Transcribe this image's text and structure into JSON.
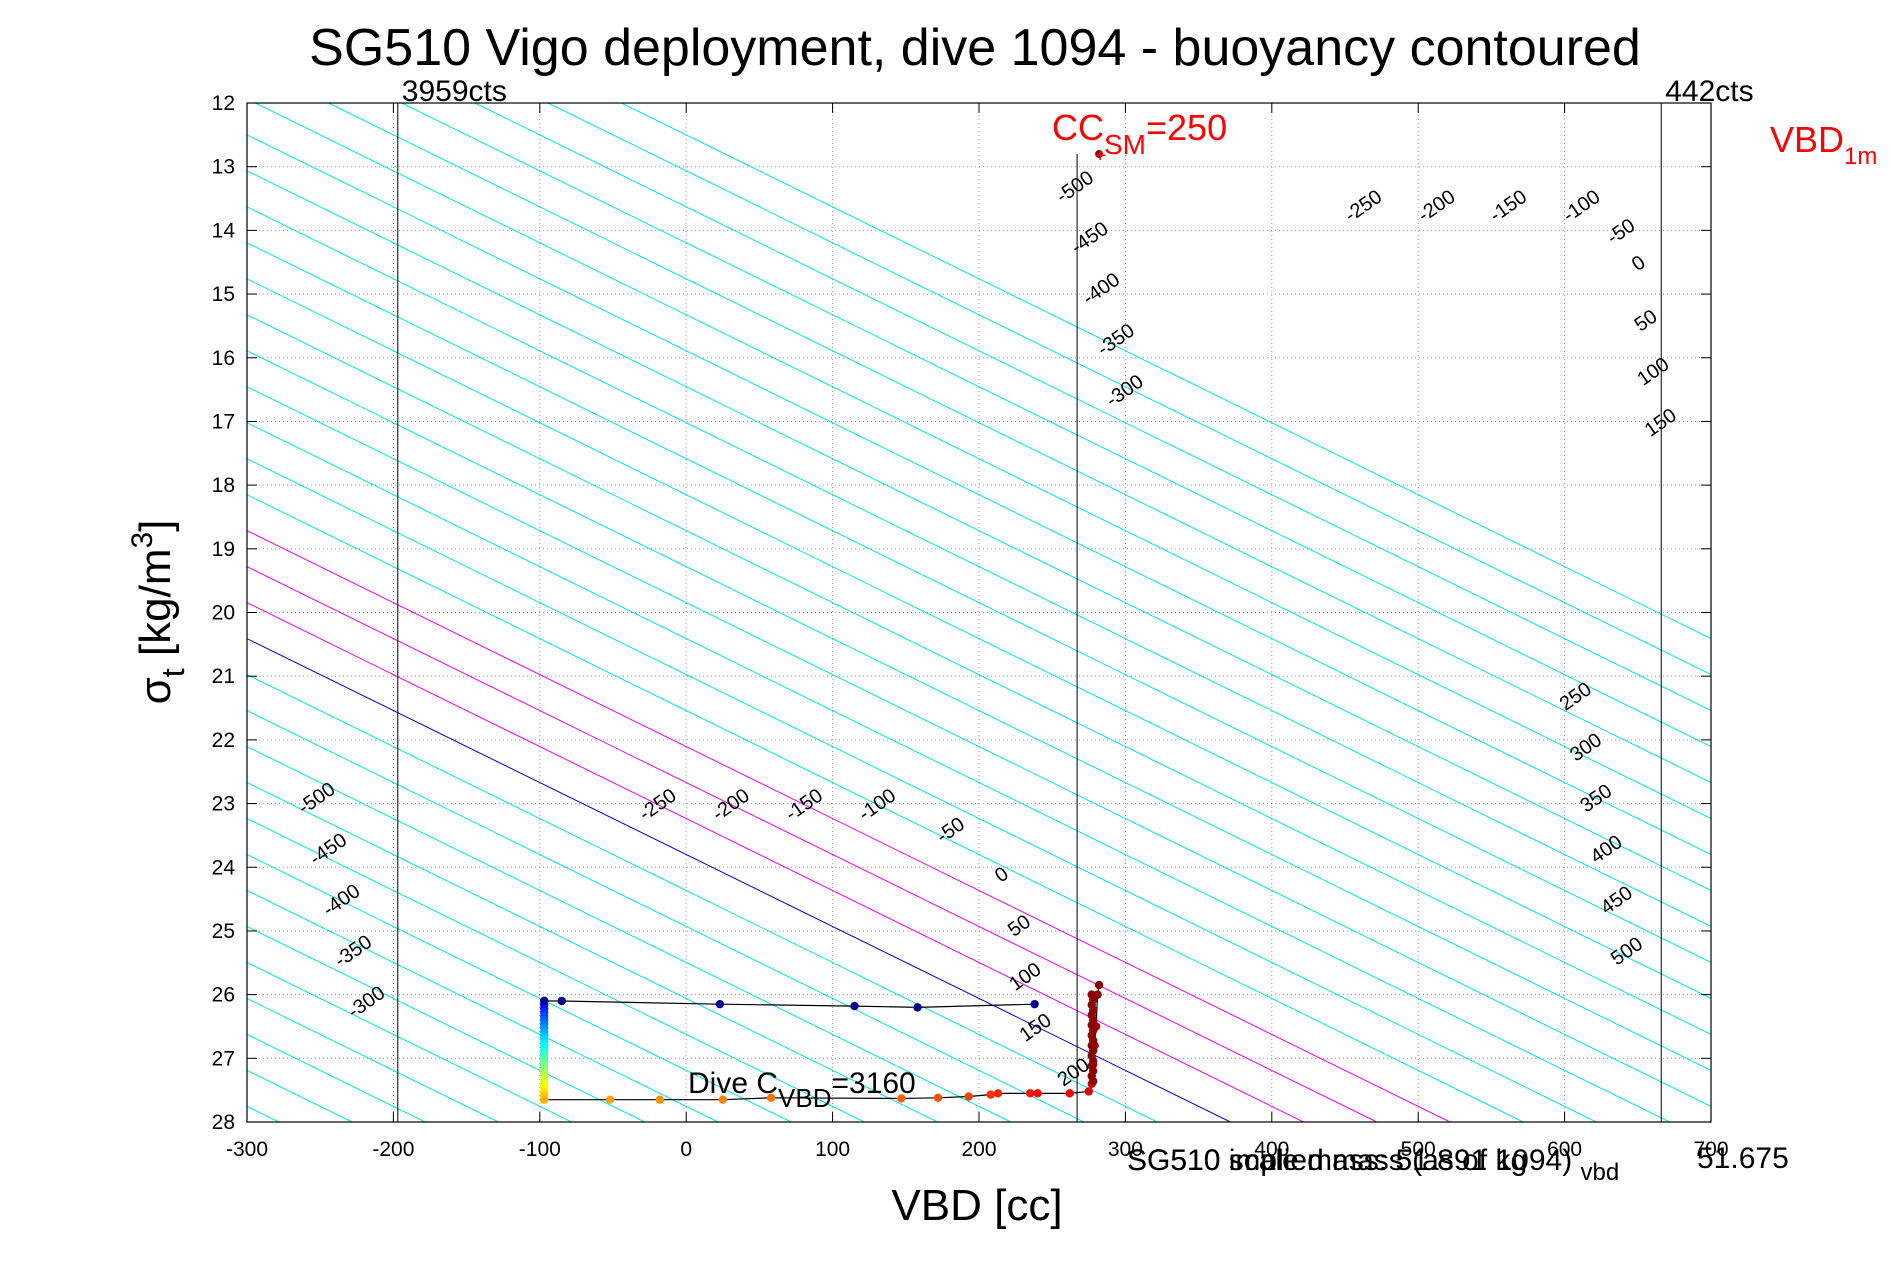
{
  "chart_data": {
    "type": "scatter",
    "title": "SG510 Vigo deployment, dive 1094 - buoyancy contoured",
    "xlabel": "VBD [cc]",
    "ylabel_main": "σ",
    "ylabel_sub": "t",
    "ylabel_rest": " [kg/m",
    "ylabel_sup": "3",
    "ylabel_end": "]",
    "xlim": [
      -300,
      700
    ],
    "ylim": [
      12,
      28
    ],
    "y_reversed": true,
    "grid": true,
    "x_ticks": [
      -300,
      -200,
      -100,
      0,
      100,
      200,
      300,
      400,
      500,
      600,
      700
    ],
    "y_ticks": [
      12,
      13,
      14,
      15,
      16,
      17,
      18,
      19,
      20,
      21,
      22,
      23,
      24,
      25,
      26,
      27,
      28
    ],
    "contours": {
      "levels": [
        -500,
        -450,
        -400,
        -350,
        -300,
        -250,
        -200,
        -150,
        -100,
        -50,
        0,
        50,
        100,
        150,
        200,
        250,
        300,
        350,
        400,
        450,
        500
      ],
      "anchor_vbd": 0,
      "anchor_sigma": 23.8,
      "slope_vbd_per_sigma": 88.5,
      "spacing_vbd_per_level": 1.0,
      "colors": {
        "negative": "#00e6e6",
        "zero": "#0000cc",
        "low_positive": "#ee00ee",
        "high_positive": "#00e6e6"
      },
      "label_groups": [
        {
          "levels": [
            "-500",
            "-450",
            "-400",
            "-350",
            "-300"
          ],
          "pos": [
            [
              -250,
              23.0
            ],
            [
              -242,
              23.8
            ],
            [
              -233,
              24.6
            ],
            [
              -225,
              25.4
            ],
            [
              -216,
              26.2
            ]
          ]
        },
        {
          "levels": [
            "-250",
            "-200",
            "-150",
            "-100",
            "-50",
            "0"
          ],
          "pos": [
            [
              -17,
              23.1
            ],
            [
              33,
              23.1
            ],
            [
              83,
              23.1
            ],
            [
              133,
              23.1
            ],
            [
              183,
              23.5
            ],
            [
              218,
              24.2
            ]
          ]
        },
        {
          "levels": [
            "50",
            "100",
            "150",
            "200"
          ],
          "pos": [
            [
              230,
              25.0
            ],
            [
              234,
              25.8
            ],
            [
              241,
              26.6
            ],
            [
              267,
              27.3
            ]
          ]
        },
        {
          "levels": [
            "-500",
            "-450",
            "-400",
            "-350",
            "-300"
          ],
          "pos": [
            [
              268,
              13.4
            ],
            [
              278,
              14.2
            ],
            [
              286,
              15.0
            ],
            [
              296,
              15.8
            ],
            [
              302,
              16.6
            ]
          ]
        },
        {
          "levels": [
            "-250",
            "-200",
            "-150",
            "-100",
            "-50",
            "0"
          ],
          "pos": [
            [
              465,
              13.7
            ],
            [
              515,
              13.7
            ],
            [
              564,
              13.7
            ],
            [
              614,
              13.7
            ],
            [
              641,
              14.1
            ],
            [
              653,
              14.6
            ]
          ]
        },
        {
          "levels": [
            "50",
            "100",
            "150"
          ],
          "pos": [
            [
              658,
              15.5
            ],
            [
              663,
              16.3
            ],
            [
              668,
              17.1
            ]
          ]
        },
        {
          "levels": [
            "250",
            "300",
            "350",
            "400",
            "450",
            "500"
          ],
          "pos": [
            [
              610,
              21.4
            ],
            [
              617,
              22.2
            ],
            [
              624,
              23.0
            ],
            [
              631,
              23.8
            ],
            [
              638,
              24.6
            ],
            [
              645,
              25.4
            ]
          ]
        }
      ]
    },
    "vertical_lines": [
      {
        "x": -197,
        "label": "3959cts"
      },
      {
        "x": 267,
        "label": ""
      },
      {
        "x": 666,
        "label": "442cts"
      }
    ],
    "cc_sm": {
      "text_main": "CC",
      "text_sub": "SM",
      "text_rest": "=250",
      "x": 283,
      "y": 12.8
    },
    "vbd_1m": {
      "text_main": "VBD",
      "text_sub": "1m"
    },
    "dive_cvbd": {
      "text_main": "Dive C",
      "text_sub": "VBD",
      "text_rest": "=3160"
    },
    "overlap_text_1": {
      "text": "SG510 implied mass (as of 1094) ",
      "sub": "vbd"
    },
    "overlap_text_2": "SG510 scale mass: 51.891 kg",
    "overlap_text_3": "51.675",
    "dive_path": {
      "x": [
        -97,
        -85,
        23,
        115,
        158,
        238
      ],
      "y": [
        26.1,
        26.1,
        26.15,
        26.18,
        26.2,
        26.15
      ]
    },
    "climb_path": {
      "x": [
        -97,
        -52,
        -18,
        25,
        58,
        147,
        172,
        193,
        208,
        213,
        235,
        240,
        262,
        275,
        277,
        278,
        279,
        280,
        281,
        282
      ],
      "y": [
        27.65,
        27.65,
        27.65,
        27.65,
        27.62,
        27.63,
        27.62,
        27.6,
        27.57,
        27.55,
        27.55,
        27.55,
        27.55,
        27.52,
        27.4,
        27.1,
        26.8,
        26.5,
        26.0,
        25.85
      ]
    },
    "apex_point": {
      "x": 282,
      "y": 12.8
    }
  }
}
